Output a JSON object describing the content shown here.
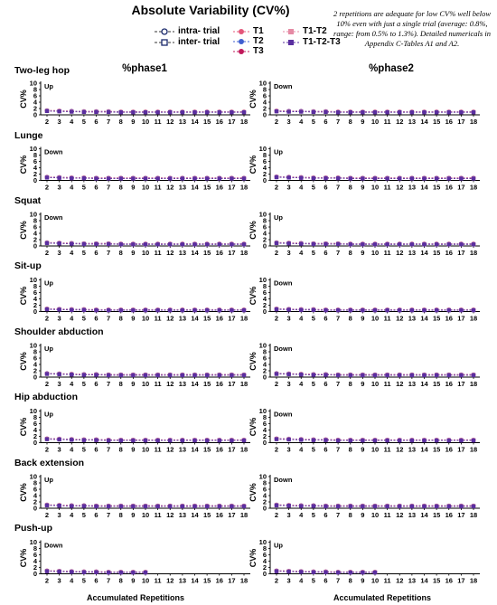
{
  "title": "Absolute Variability (CV%)",
  "note": "2 repetitions are adequate for low CV% well below 10% even with just a single trial (average: 0.8%, range: from 0.5% to 1.3%). Detailed numericals in Appendix C-Tables A1 and A2.",
  "legend": {
    "intra": "intra- trial",
    "inter": "inter- trial",
    "t1": "T1",
    "t2": "T2",
    "t3": "T3",
    "t1t2": "T1-T2",
    "t1t2t3": "T1-T2-T3"
  },
  "colors": {
    "t1": "#e4567a",
    "t2": "#3f5fd0",
    "t3": "#c0185a",
    "t1t2": "#e58aa4",
    "t1t2t3": "#5a2fa0",
    "axis": "#000000"
  },
  "chart_data": {
    "type": "line",
    "column_titles": [
      "%phase1",
      "%phase2"
    ],
    "xlabel": "Accumulated Repetitions",
    "ylabel": "CV%",
    "ylim": [
      0,
      10
    ],
    "yticks": [
      0,
      2,
      4,
      6,
      8,
      10
    ],
    "x": [
      2,
      3,
      4,
      5,
      6,
      7,
      8,
      9,
      10,
      11,
      12,
      13,
      14,
      15,
      16,
      17,
      18
    ],
    "panels": [
      {
        "exercise": "Two-leg hop",
        "phase1_direction": "Up",
        "phase2_direction": "Down",
        "phase1": [
          1.3,
          1.2,
          1.1,
          1.0,
          1.0,
          1.0,
          0.9,
          0.9,
          0.9,
          0.9,
          0.9,
          0.9,
          0.9,
          0.9,
          0.9,
          0.9,
          0.9
        ],
        "phase2": [
          1.2,
          1.1,
          1.1,
          1.0,
          1.0,
          0.9,
          0.9,
          0.9,
          0.9,
          0.9,
          0.9,
          0.9,
          0.9,
          0.9,
          0.9,
          0.9,
          0.9
        ]
      },
      {
        "exercise": "Lunge",
        "phase1_direction": "Down",
        "phase2_direction": "Up",
        "phase1": [
          1.0,
          0.9,
          0.8,
          0.8,
          0.7,
          0.7,
          0.7,
          0.7,
          0.7,
          0.7,
          0.7,
          0.7,
          0.7,
          0.7,
          0.7,
          0.7,
          0.7
        ],
        "phase2": [
          1.1,
          1.0,
          0.9,
          0.8,
          0.8,
          0.8,
          0.7,
          0.7,
          0.7,
          0.7,
          0.7,
          0.7,
          0.7,
          0.7,
          0.7,
          0.7,
          0.7
        ]
      },
      {
        "exercise": "Squat",
        "phase1_direction": "Down",
        "phase2_direction": "Up",
        "phase1": [
          1.0,
          0.9,
          0.8,
          0.7,
          0.7,
          0.7,
          0.6,
          0.6,
          0.6,
          0.6,
          0.6,
          0.6,
          0.6,
          0.6,
          0.6,
          0.6,
          0.6
        ],
        "phase2": [
          1.0,
          0.9,
          0.8,
          0.7,
          0.7,
          0.7,
          0.6,
          0.6,
          0.6,
          0.6,
          0.6,
          0.6,
          0.6,
          0.6,
          0.6,
          0.6,
          0.6
        ]
      },
      {
        "exercise": "Sit-up",
        "phase1_direction": "Up",
        "phase2_direction": "Down",
        "phase1": [
          0.8,
          0.7,
          0.6,
          0.6,
          0.5,
          0.5,
          0.5,
          0.5,
          0.5,
          0.5,
          0.5,
          0.5,
          0.5,
          0.5,
          0.5,
          0.5,
          0.5
        ],
        "phase2": [
          0.8,
          0.7,
          0.6,
          0.6,
          0.5,
          0.5,
          0.5,
          0.5,
          0.5,
          0.5,
          0.5,
          0.5,
          0.5,
          0.5,
          0.5,
          0.5,
          0.5
        ]
      },
      {
        "exercise": "Shoulder abduction",
        "phase1_direction": "Up",
        "phase2_direction": "Down",
        "phase1": [
          1.1,
          1.0,
          0.9,
          0.8,
          0.8,
          0.7,
          0.7,
          0.7,
          0.7,
          0.7,
          0.7,
          0.7,
          0.7,
          0.7,
          0.7,
          0.7,
          0.7
        ],
        "phase2": [
          1.1,
          1.0,
          0.9,
          0.8,
          0.8,
          0.7,
          0.7,
          0.7,
          0.7,
          0.7,
          0.7,
          0.7,
          0.7,
          0.7,
          0.7,
          0.7,
          0.7
        ]
      },
      {
        "exercise": "Hip abduction",
        "phase1_direction": "Up",
        "phase2_direction": "Down",
        "phase1": [
          1.2,
          1.1,
          1.0,
          0.9,
          0.9,
          0.8,
          0.8,
          0.8,
          0.8,
          0.8,
          0.8,
          0.8,
          0.8,
          0.8,
          0.8,
          0.8,
          0.8
        ],
        "phase2": [
          1.2,
          1.1,
          1.0,
          0.9,
          0.9,
          0.8,
          0.8,
          0.8,
          0.8,
          0.8,
          0.8,
          0.8,
          0.8,
          0.8,
          0.8,
          0.8,
          0.8
        ]
      },
      {
        "exercise": "Back extension",
        "phase1_direction": "Up",
        "phase2_direction": "Down",
        "phase1": [
          1.0,
          0.9,
          0.8,
          0.8,
          0.7,
          0.7,
          0.7,
          0.7,
          0.7,
          0.7,
          0.7,
          0.7,
          0.7,
          0.7,
          0.7,
          0.7,
          0.7
        ],
        "phase2": [
          1.0,
          0.9,
          0.8,
          0.8,
          0.7,
          0.7,
          0.7,
          0.7,
          0.7,
          0.7,
          0.7,
          0.7,
          0.7,
          0.7,
          0.7,
          0.7,
          0.7
        ]
      },
      {
        "exercise": "Push-up",
        "phase1_direction": "Down",
        "phase2_direction": "Up",
        "phase1": [
          0.9,
          0.8,
          0.7,
          0.6,
          0.6,
          0.5,
          0.5,
          0.5,
          0.5
        ],
        "phase2": [
          0.9,
          0.8,
          0.7,
          0.6,
          0.6,
          0.5,
          0.5,
          0.5,
          0.5
        ]
      }
    ]
  }
}
